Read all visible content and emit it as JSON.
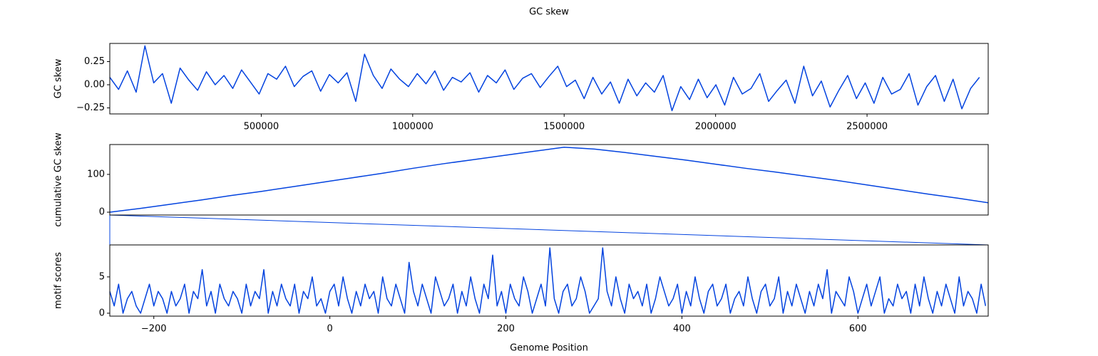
{
  "title": "GC skew",
  "chart_data": [
    {
      "type": "line",
      "ylabel": "GC skew",
      "color": "#0343df",
      "xlim": [
        0,
        2900000
      ],
      "xticks": [
        500000,
        1000000,
        1500000,
        2000000,
        2500000
      ],
      "ylim": [
        -0.315,
        0.446
      ],
      "yticks": [
        {
          "value": -0.25,
          "label": "−0.25"
        },
        {
          "value": 0,
          "label": "0.00"
        },
        0.25
      ],
      "x": [
        0,
        29000,
        58000,
        87000,
        116000,
        145000,
        174000,
        203000,
        232000,
        261000,
        290000,
        319000,
        348000,
        377000,
        406000,
        435000,
        464000,
        493000,
        522000,
        551000,
        580000,
        609000,
        638000,
        667000,
        696000,
        725000,
        754000,
        783000,
        812000,
        841000,
        870000,
        899000,
        928000,
        957000,
        986000,
        1015000,
        1044000,
        1073000,
        1102000,
        1131000,
        1160000,
        1189000,
        1218000,
        1247000,
        1276000,
        1305000,
        1334000,
        1363000,
        1392000,
        1421000,
        1450000,
        1479000,
        1508000,
        1537000,
        1566000,
        1595000,
        1624000,
        1653000,
        1682000,
        1711000,
        1740000,
        1769000,
        1798000,
        1827000,
        1856000,
        1885000,
        1914000,
        1943000,
        1972000,
        2001000,
        2030000,
        2059000,
        2088000,
        2117000,
        2146000,
        2175000,
        2204000,
        2233000,
        2262000,
        2291000,
        2320000,
        2349000,
        2378000,
        2407000,
        2436000,
        2465000,
        2494000,
        2523000,
        2552000,
        2581000,
        2610000,
        2639000,
        2668000,
        2697000,
        2726000,
        2755000,
        2784000,
        2813000,
        2842000,
        2871000
      ],
      "values": [
        0.08,
        -0.05,
        0.15,
        -0.08,
        0.42,
        0.02,
        0.12,
        -0.2,
        0.18,
        0.05,
        -0.06,
        0.14,
        0.0,
        0.1,
        -0.04,
        0.16,
        0.03,
        -0.1,
        0.12,
        0.06,
        0.2,
        -0.02,
        0.09,
        0.15,
        -0.07,
        0.11,
        0.02,
        0.13,
        -0.18,
        0.33,
        0.1,
        -0.04,
        0.17,
        0.06,
        -0.02,
        0.12,
        0.01,
        0.15,
        -0.06,
        0.08,
        0.03,
        0.13,
        -0.08,
        0.1,
        0.02,
        0.16,
        -0.05,
        0.07,
        0.12,
        -0.03,
        0.09,
        0.2,
        -0.02,
        0.05,
        -0.15,
        0.08,
        -0.1,
        0.03,
        -0.2,
        0.06,
        -0.12,
        0.02,
        -0.08,
        0.1,
        -0.28,
        -0.02,
        -0.16,
        0.06,
        -0.14,
        0.0,
        -0.22,
        0.08,
        -0.1,
        -0.04,
        0.12,
        -0.18,
        -0.06,
        0.05,
        -0.2,
        0.2,
        -0.12,
        0.04,
        -0.24,
        -0.06,
        0.1,
        -0.15,
        0.02,
        -0.2,
        0.08,
        -0.1,
        -0.05,
        0.12,
        -0.22,
        -0.02,
        0.1,
        -0.18,
        0.06,
        -0.26,
        -0.04,
        0.08
      ]
    },
    {
      "type": "line",
      "ylabel": "cumulative GC skew",
      "color": "#0343df",
      "xlim": [
        0,
        2900000
      ],
      "ylim": [
        -7.5,
        179
      ],
      "yticks": [
        0,
        100
      ],
      "x": [
        0,
        100000,
        200000,
        300000,
        400000,
        500000,
        600000,
        700000,
        800000,
        900000,
        1000000,
        1100000,
        1200000,
        1300000,
        1400000,
        1500000,
        1600000,
        1700000,
        1800000,
        1900000,
        2000000,
        2100000,
        2200000,
        2300000,
        2400000,
        2500000,
        2600000,
        2700000,
        2800000,
        2900000
      ],
      "values": [
        0,
        10,
        21,
        32,
        44,
        55,
        67,
        79,
        91,
        103,
        116,
        128,
        139,
        150,
        161,
        172,
        167,
        158,
        148,
        138,
        127,
        116,
        106,
        95,
        84,
        72,
        60,
        48,
        37,
        25
      ]
    },
    {
      "type": "line",
      "ylabel": "motif scores",
      "xlabel": "Genome Position",
      "color": "#0343df",
      "xlim": [
        -250,
        748
      ],
      "xticks": [
        {
          "value": -200,
          "label": "−200"
        },
        0,
        200,
        400,
        600
      ],
      "ylim": [
        -0.4,
        9.4
      ],
      "yticks": [
        0,
        5
      ],
      "x": [
        -250,
        -245,
        -240,
        -235,
        -230,
        -225,
        -220,
        -215,
        -210,
        -205,
        -200,
        -195,
        -190,
        -185,
        -180,
        -175,
        -170,
        -165,
        -160,
        -155,
        -150,
        -145,
        -140,
        -135,
        -130,
        -125,
        -120,
        -115,
        -110,
        -105,
        -100,
        -95,
        -90,
        -85,
        -80,
        -75,
        -70,
        -65,
        -60,
        -55,
        -50,
        -45,
        -40,
        -35,
        -30,
        -25,
        -20,
        -15,
        -10,
        -5,
        0,
        5,
        10,
        15,
        20,
        25,
        30,
        35,
        40,
        45,
        50,
        55,
        60,
        65,
        70,
        75,
        80,
        85,
        90,
        95,
        100,
        105,
        110,
        115,
        120,
        125,
        130,
        135,
        140,
        145,
        150,
        155,
        160,
        165,
        170,
        175,
        180,
        185,
        190,
        195,
        200,
        205,
        210,
        215,
        220,
        225,
        230,
        235,
        240,
        245,
        250,
        255,
        260,
        265,
        270,
        275,
        280,
        285,
        290,
        295,
        300,
        305,
        310,
        315,
        320,
        325,
        330,
        335,
        340,
        345,
        350,
        355,
        360,
        365,
        370,
        375,
        380,
        385,
        390,
        395,
        400,
        405,
        410,
        415,
        420,
        425,
        430,
        435,
        440,
        445,
        450,
        455,
        460,
        465,
        470,
        475,
        480,
        485,
        490,
        495,
        500,
        505,
        510,
        515,
        520,
        525,
        530,
        535,
        540,
        545,
        550,
        555,
        560,
        565,
        570,
        575,
        580,
        585,
        590,
        595,
        600,
        605,
        610,
        615,
        620,
        625,
        630,
        635,
        640,
        645,
        650,
        655,
        660,
        665,
        670,
        675,
        680,
        685,
        690,
        695,
        700,
        705,
        710,
        715,
        720,
        725,
        730,
        735,
        740,
        745
      ],
      "values": [
        3,
        1,
        4,
        0,
        2,
        3,
        1,
        0,
        2,
        4,
        1,
        3,
        2,
        0,
        3,
        1,
        2,
        4,
        0,
        3,
        2,
        6,
        1,
        3,
        0,
        4,
        2,
        1,
        3,
        2,
        0,
        4,
        1,
        3,
        2,
        6,
        0,
        3,
        1,
        4,
        2,
        1,
        4,
        0,
        3,
        2,
        5,
        1,
        2,
        0,
        3,
        4,
        1,
        5,
        2,
        0,
        3,
        1,
        4,
        2,
        3,
        0,
        5,
        2,
        1,
        4,
        2,
        0,
        7,
        3,
        1,
        4,
        2,
        0,
        5,
        3,
        1,
        2,
        4,
        0,
        3,
        1,
        5,
        2,
        0,
        4,
        2,
        8,
        1,
        3,
        0,
        4,
        2,
        1,
        5,
        3,
        0,
        2,
        4,
        1,
        9,
        2,
        0,
        3,
        4,
        1,
        2,
        5,
        3,
        0,
        1,
        2,
        9,
        3,
        1,
        5,
        2,
        0,
        4,
        2,
        3,
        1,
        4,
        0,
        2,
        5,
        3,
        1,
        2,
        4,
        0,
        3,
        1,
        5,
        2,
        0,
        3,
        4,
        1,
        2,
        4,
        0,
        2,
        3,
        1,
        5,
        2,
        0,
        3,
        4,
        1,
        2,
        5,
        0,
        3,
        1,
        4,
        2,
        0,
        3,
        1,
        4,
        2,
        6,
        0,
        3,
        2,
        1,
        5,
        3,
        0,
        2,
        4,
        1,
        3,
        5,
        0,
        2,
        1,
        4,
        2,
        3,
        0,
        4,
        1,
        5,
        2,
        0,
        3,
        1,
        4,
        2,
        0,
        5,
        1,
        3,
        2,
        0,
        4,
        1
      ]
    }
  ]
}
